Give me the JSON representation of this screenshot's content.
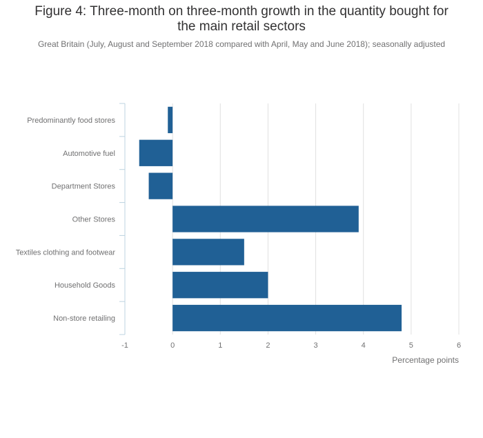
{
  "chart_data": {
    "type": "bar",
    "orientation": "horizontal",
    "title_lines": [
      "Figure 4: Three-month on three-month growth in the quantity bought for",
      "the main retail sectors"
    ],
    "subtitle": "Great Britain (July, August and September 2018 compared with April, May and June 2018); seasonally adjusted",
    "categories": [
      "Predominantly food stores",
      "Automotive fuel",
      "Department Stores",
      "Other Stores",
      "Textiles clothing and footwear",
      "Household Goods",
      "Non-store retailing"
    ],
    "values": [
      -0.1,
      -0.7,
      -0.5,
      3.9,
      1.5,
      2.0,
      4.8
    ],
    "xlabel": "Percentage points",
    "xlim": [
      -1,
      6
    ],
    "xticks": [
      "-1",
      "0",
      "1",
      "2",
      "3",
      "4",
      "5",
      "6"
    ],
    "grid": true,
    "bar_color": "#206095",
    "grid_color": "#e0e0e0",
    "axis_color": "#bcd3e0"
  }
}
